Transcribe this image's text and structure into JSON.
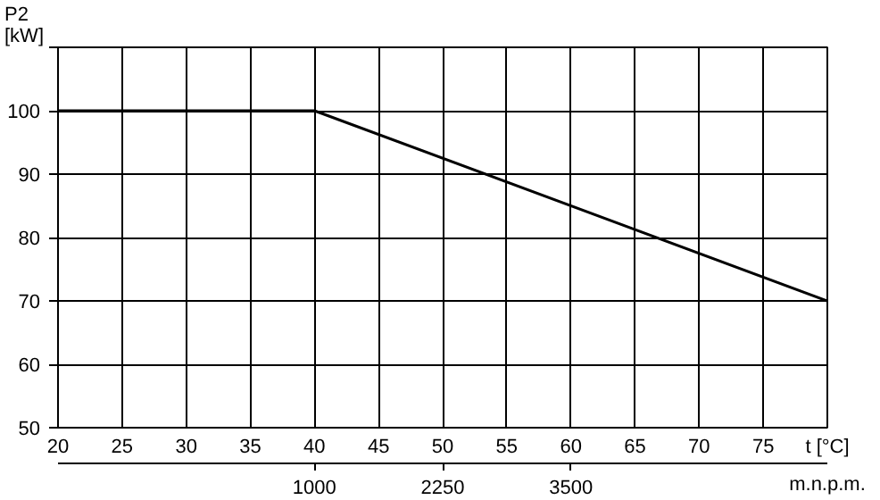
{
  "chart_data": {
    "type": "line",
    "xlabel": "t [°C]",
    "ylabel": "P2\n[kW]",
    "x2label": "m.n.p.m.",
    "x": [
      20,
      40,
      80
    ],
    "values": [
      100,
      100,
      70
    ],
    "color": "#000000",
    "xlim": [
      20,
      80
    ],
    "xticks": [
      20,
      25,
      30,
      35,
      40,
      45,
      50,
      55,
      60,
      65,
      70,
      75,
      {
        "value": 80,
        "label": null
      }
    ],
    "ylim": [
      50,
      110
    ],
    "yticks": [
      50,
      60,
      70,
      80,
      90,
      100,
      {
        "value": 110,
        "label": null
      }
    ],
    "x2lim": [
      -1500,
      6000
    ],
    "x2ticks": [
      1000,
      2250,
      3500
    ],
    "grid": true,
    "marker": "none",
    "line_style": "solid"
  }
}
